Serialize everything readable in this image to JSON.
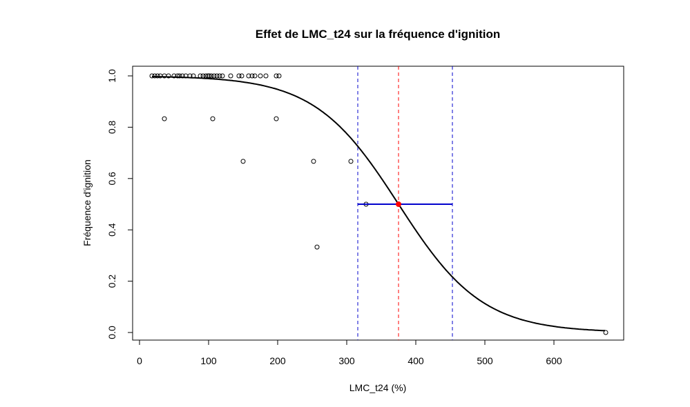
{
  "chart_data": {
    "type": "scatter",
    "title": "Effet de LMC_t24 sur la fréquence d'ignition",
    "xlabel": "LMC_t24 (%)",
    "ylabel": "Fréquence d'ignition",
    "xlim": [
      0,
      700
    ],
    "ylim": [
      0,
      1
    ],
    "x_ticks": [
      "0",
      "100",
      "200",
      "300",
      "400",
      "500",
      "600"
    ],
    "y_ticks": [
      "0.0",
      "0.2",
      "0.4",
      "0.6",
      "0.8",
      "1.0"
    ],
    "grid": false,
    "points": [
      {
        "x": 18,
        "y": 1.0
      },
      {
        "x": 22,
        "y": 1.0
      },
      {
        "x": 26,
        "y": 1.0
      },
      {
        "x": 30,
        "y": 1.0
      },
      {
        "x": 36,
        "y": 1.0
      },
      {
        "x": 42,
        "y": 1.0
      },
      {
        "x": 50,
        "y": 1.0
      },
      {
        "x": 55,
        "y": 1.0
      },
      {
        "x": 58,
        "y": 1.0
      },
      {
        "x": 62,
        "y": 1.0
      },
      {
        "x": 67,
        "y": 1.0
      },
      {
        "x": 73,
        "y": 1.0
      },
      {
        "x": 78,
        "y": 1.0
      },
      {
        "x": 88,
        "y": 1.0
      },
      {
        "x": 92,
        "y": 1.0
      },
      {
        "x": 96,
        "y": 1.0
      },
      {
        "x": 99,
        "y": 1.0
      },
      {
        "x": 101,
        "y": 1.0
      },
      {
        "x": 104,
        "y": 1.0
      },
      {
        "x": 108,
        "y": 1.0
      },
      {
        "x": 112,
        "y": 1.0
      },
      {
        "x": 116,
        "y": 1.0
      },
      {
        "x": 120,
        "y": 1.0
      },
      {
        "x": 132,
        "y": 1.0
      },
      {
        "x": 144,
        "y": 1.0
      },
      {
        "x": 148,
        "y": 1.0
      },
      {
        "x": 158,
        "y": 1.0
      },
      {
        "x": 163,
        "y": 1.0
      },
      {
        "x": 167,
        "y": 1.0
      },
      {
        "x": 175,
        "y": 1.0
      },
      {
        "x": 183,
        "y": 1.0
      },
      {
        "x": 198,
        "y": 1.0
      },
      {
        "x": 202,
        "y": 1.0
      },
      {
        "x": 36,
        "y": 0.833
      },
      {
        "x": 106,
        "y": 0.833
      },
      {
        "x": 198,
        "y": 0.833
      },
      {
        "x": 150,
        "y": 0.667
      },
      {
        "x": 252,
        "y": 0.667
      },
      {
        "x": 306,
        "y": 0.667
      },
      {
        "x": 328,
        "y": 0.5
      },
      {
        "x": 257,
        "y": 0.333
      },
      {
        "x": 675,
        "y": 0.0
      }
    ],
    "fitted_curve": {
      "type": "logistic",
      "midpoint": 375,
      "steepness": 0.0165,
      "x_range": [
        18,
        675
      ]
    },
    "threshold": {
      "x": 375,
      "y": 0.5
    },
    "ci": {
      "lower": 316,
      "upper": 453,
      "y": 0.5
    },
    "colors": {
      "points": "#000000",
      "curve": "#000000",
      "threshold_line": "#ff0000",
      "ci_lines": "#0000cc",
      "ci_segment": "#0000cc",
      "threshold_point": "#ff0000"
    }
  }
}
